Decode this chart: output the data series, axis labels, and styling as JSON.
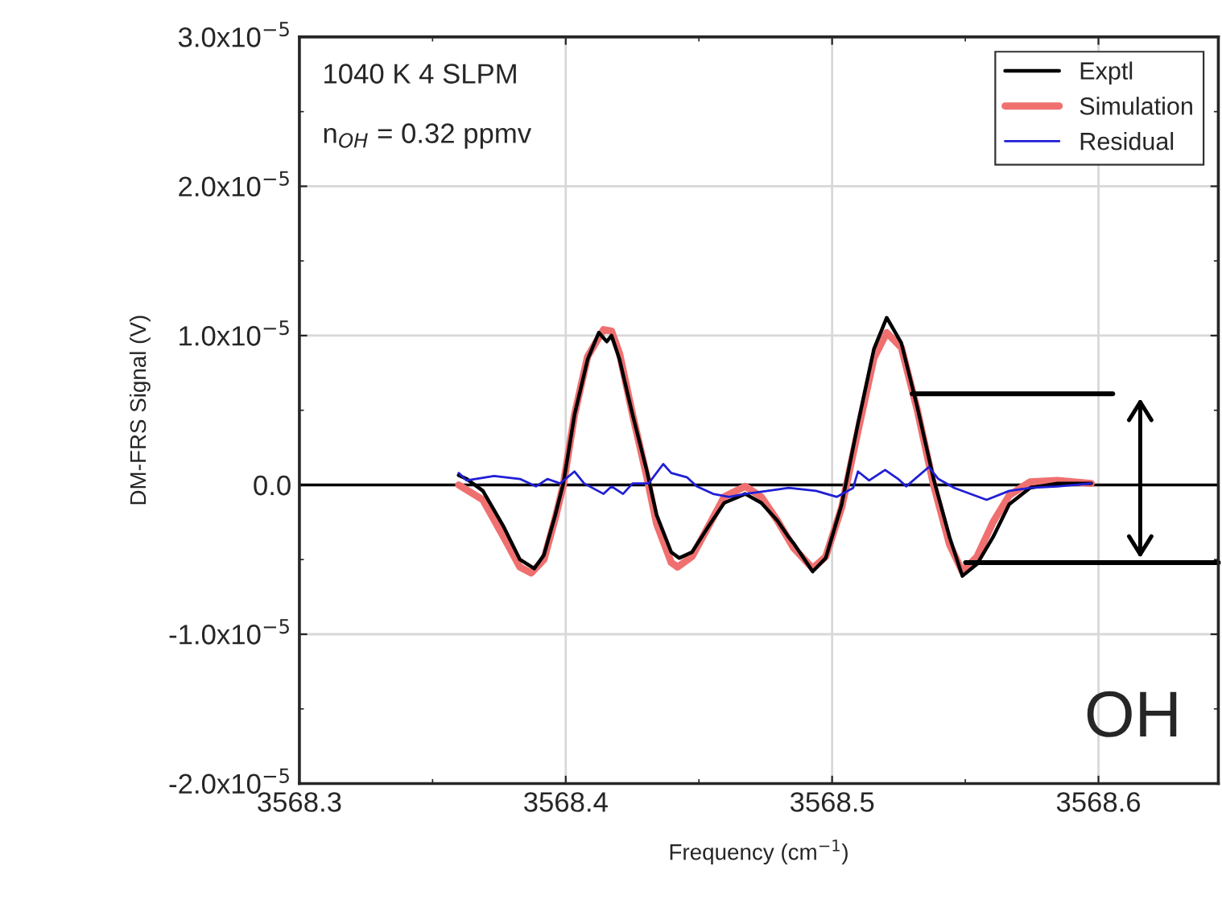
{
  "chart_data": {
    "type": "line",
    "xlabel": "Frequency (cm$^{−1}$)",
    "ylabel": "DM-FRS Signal (V)",
    "annotations": [
      "1040 K 4 SLPM",
      "n$_{OH}$ = 0.32 ppmv",
      "OH"
    ],
    "xlim": [
      3568.3,
      3568.645
    ],
    "xticks": [
      3568.3,
      3568.4,
      3568.5,
      3568.6
    ],
    "ylim": [
      -2e-05,
      3e-05
    ],
    "yticks": [
      {
        "value": -2e-05,
        "label": "-2.0x10$^{−5}$"
      },
      {
        "value": -1e-05,
        "label": "-1.0x10$^{−5}$"
      },
      {
        "value": 0,
        "label": "0.0"
      },
      {
        "value": 1e-05,
        "label": "1.0x10$^{−5}$"
      },
      {
        "value": 2e-05,
        "label": "2.0x10$^{−5}$"
      },
      {
        "value": 3e-05,
        "label": "3.0x10$^{−5}$"
      }
    ],
    "grid": true,
    "legend": "top right",
    "ref_lines": [
      {
        "axis": "y",
        "value": 0,
        "color": "#000000"
      }
    ],
    "series": [
      {
        "name": "Exptl",
        "color": "#000000",
        "x": [
          3568.3598,
          3568.3628,
          3568.3689,
          3568.3767,
          3568.3828,
          3568.3882,
          3568.3918,
          3568.3961,
          3568.3991,
          3568.4033,
          3568.4082,
          3568.4124,
          3568.4154,
          3568.4172,
          3568.4202,
          3568.4251,
          3568.4305,
          3568.4341,
          3568.4396,
          3568.4426,
          3568.4474,
          3568.4535,
          3568.4595,
          3568.4674,
          3568.4734,
          3568.4795,
          3568.4837,
          3568.4855,
          3568.4927,
          3568.4976,
          3568.5036,
          3568.5097,
          3568.5157,
          3568.5205,
          3568.526,
          3568.532,
          3568.5381,
          3568.5441,
          3568.5489,
          3568.5544,
          3568.5604,
          3568.5665,
          3568.5743,
          3568.5846,
          3568.5973
        ],
        "values": [
          6.5e-07,
          4e-07,
          -4e-07,
          -2.8e-06,
          -5e-06,
          -5.6e-06,
          -4.7e-06,
          -2e-06,
          1e-07,
          4.7e-06,
          8.4e-06,
          1.02e-05,
          9.6e-06,
          1e-05,
          8.4e-06,
          4.7e-06,
          9e-07,
          -2e-06,
          -4.5e-06,
          -4.9e-06,
          -4.5e-06,
          -2.8e-06,
          -1.2e-06,
          -6e-07,
          -1.2e-06,
          -2.4e-06,
          -3.5e-06,
          -3.9e-06,
          -5.8e-06,
          -4.9e-06,
          -1.3e-06,
          4.1e-06,
          9.1e-06,
          1.12e-05,
          9.5e-06,
          5.2e-06,
          4e-07,
          -3.5e-06,
          -6.1e-06,
          -5.3e-06,
          -3.5e-06,
          -1.3e-06,
          -2e-07,
          1e-07,
          1e-07
        ]
      },
      {
        "name": "Simulation",
        "color": "#f07070",
        "x": [
          3568.3598,
          3568.3689,
          3568.3767,
          3568.3828,
          3568.387,
          3568.3918,
          3568.3961,
          3568.3991,
          3568.4033,
          3568.4082,
          3568.4142,
          3568.4172,
          3568.4202,
          3568.4251,
          3568.4305,
          3568.4341,
          3568.4396,
          3568.442,
          3568.4474,
          3568.4535,
          3568.4595,
          3568.4674,
          3568.4734,
          3568.4795,
          3568.4855,
          3568.4927,
          3568.4976,
          3568.5036,
          3568.5097,
          3568.5157,
          3568.5205,
          3568.526,
          3568.532,
          3568.5381,
          3568.5441,
          3568.5489,
          3568.5544,
          3568.5604,
          3568.5665,
          3568.5743,
          3568.5846,
          3568.5973
        ],
        "values": [
          0,
          -1e-06,
          -3.5e-06,
          -5.5e-06,
          -5.9e-06,
          -5e-06,
          -2.2e-06,
          0,
          4.7e-06,
          8.6e-06,
          1.04e-05,
          1.03e-05,
          8.8e-06,
          4.7e-06,
          5e-07,
          -2.6e-06,
          -5.2e-06,
          -5.5e-06,
          -4.8e-06,
          -2.8e-06,
          -8e-07,
          -1e-07,
          -8e-07,
          -2.4e-06,
          -4.2e-06,
          -5.6e-06,
          -4.8e-06,
          -1.5e-06,
          3.6e-06,
          8.5e-06,
          1.02e-05,
          9.2e-06,
          5e-06,
          0,
          -4e-06,
          -5.8e-06,
          -4.8e-06,
          -2.5e-06,
          -7e-07,
          2e-07,
          3e-07,
          1e-07
        ]
      },
      {
        "name": "Residual",
        "color": "#1f1fd6",
        "x": [
          3568.3598,
          3568.3628,
          3568.3731,
          3568.3828,
          3568.3888,
          3568.3931,
          3568.3979,
          3568.4033,
          3568.4069,
          3568.4142,
          3568.4172,
          3568.4215,
          3568.4251,
          3568.4311,
          3568.4366,
          3568.4396,
          3568.4456,
          3568.4492,
          3568.4553,
          3568.4613,
          3568.4674,
          3568.4758,
          3568.4837,
          3568.494,
          3568.5018,
          3568.5079,
          3568.5097,
          3568.5139,
          3568.5199,
          3568.5248,
          3568.5278,
          3568.5363,
          3568.5399,
          3568.5459,
          3568.558,
          3568.5665,
          3568.5743,
          3568.5846,
          3568.5973
        ],
        "values": [
          8e-07,
          3e-07,
          6e-07,
          4e-07,
          -1e-07,
          4e-07,
          1e-07,
          9e-07,
          1e-07,
          -6e-07,
          -1e-07,
          -6e-07,
          1e-07,
          1e-07,
          1.4e-06,
          8e-07,
          5e-07,
          -1e-07,
          -6e-07,
          -8e-07,
          -6e-07,
          -4e-07,
          -2e-07,
          -4e-07,
          -8e-07,
          -2e-07,
          9e-07,
          3e-07,
          1e-06,
          4e-07,
          -1e-07,
          1.2e-06,
          4e-07,
          -2e-07,
          -1e-06,
          -4e-07,
          -2e-07,
          -1e-07,
          1e-07
        ]
      }
    ]
  }
}
